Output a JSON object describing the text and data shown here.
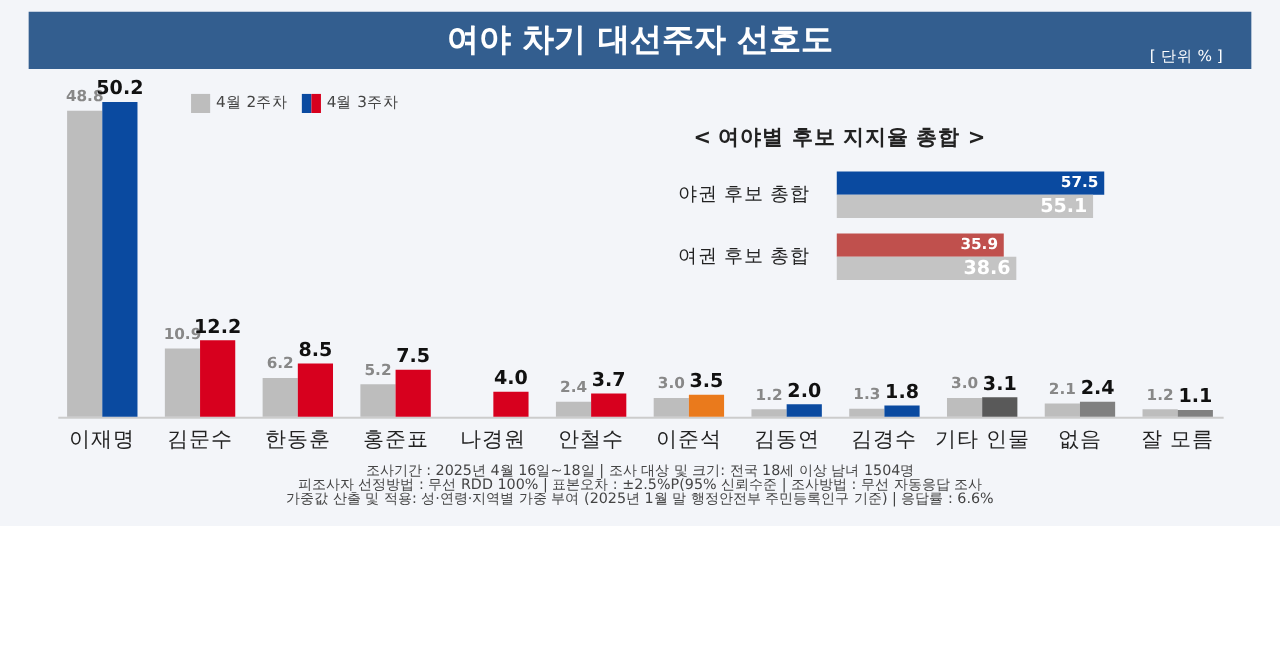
{
  "chart_data": [
    {
      "type": "bar",
      "title": "여야 차기 대선주자 선호도",
      "categories": [
        "이재명",
        "김문수",
        "한동훈",
        "홍준표",
        "나경원",
        "안철수",
        "이준석",
        "김동연",
        "김경수",
        "기타 인물",
        "없음",
        "잘 모름"
      ],
      "series": [
        {
          "name": "4월 2주차",
          "color": "#bdbdbd",
          "values": [
            48.8,
            10.9,
            6.2,
            5.2,
            null,
            2.4,
            3.0,
            1.2,
            1.3,
            3.0,
            2.1,
            1.2
          ],
          "value_labels": [
            "48.8",
            "10.9",
            "6.2",
            "5.2",
            null,
            "2.4",
            "3.0",
            "1.2",
            "1.3",
            "3.0",
            "2.1",
            "1.2"
          ]
        },
        {
          "name": "4월 3주차",
          "colors": [
            "#0a4aa0",
            "#d7001e",
            "#d7001e",
            "#d7001e",
            "#d7001e",
            "#d7001e",
            "#ea7a1c",
            "#0a4aa0",
            "#0a4aa0",
            "#595959",
            "#808080",
            "#808080"
          ],
          "values": [
            50.2,
            12.2,
            8.5,
            7.5,
            4.0,
            3.7,
            3.5,
            2.0,
            1.8,
            3.1,
            2.4,
            1.1
          ],
          "value_labels": [
            "50.2",
            "12.2",
            "8.5",
            "7.5",
            "4.0",
            "3.7",
            "3.5",
            "2.0",
            "1.8",
            "3.1",
            "2.4",
            "1.1"
          ]
        }
      ],
      "legend": "top left",
      "annotations": [
        "[ 단위 % ]",
        "조사기간 : 2025년 4월 16일~18일 | 조사 대상 및 크기: 전국 18세 이상 남녀 1504명",
        "피조사자 선정방법 : 무선 RDD 100% | 표본오차 : ±2.5%P(95% 신뢰수준 | 조사방법 : 무선 자동응답 조사",
        "가중값 산출 및 적용: 성·연령·지역별 가중 부여 (2025년 1월 말 행정안전부 주민등록인구 기준) | 응답률 : 6.6%"
      ]
    },
    {
      "type": "bar",
      "orientation": "horizontal",
      "title": "< 여야별 후보 지지율 총합 >",
      "categories": [
        "야권 후보 총합",
        "여권 후보 총합"
      ],
      "series": [
        {
          "colors": [
            "#0a4aa0",
            "#c0504d"
          ],
          "values": [
            57.5,
            35.9
          ]
        },
        {
          "color": "#c4c4c4",
          "values": [
            55.1,
            38.6
          ]
        }
      ],
      "data_labels": true
    }
  ]
}
